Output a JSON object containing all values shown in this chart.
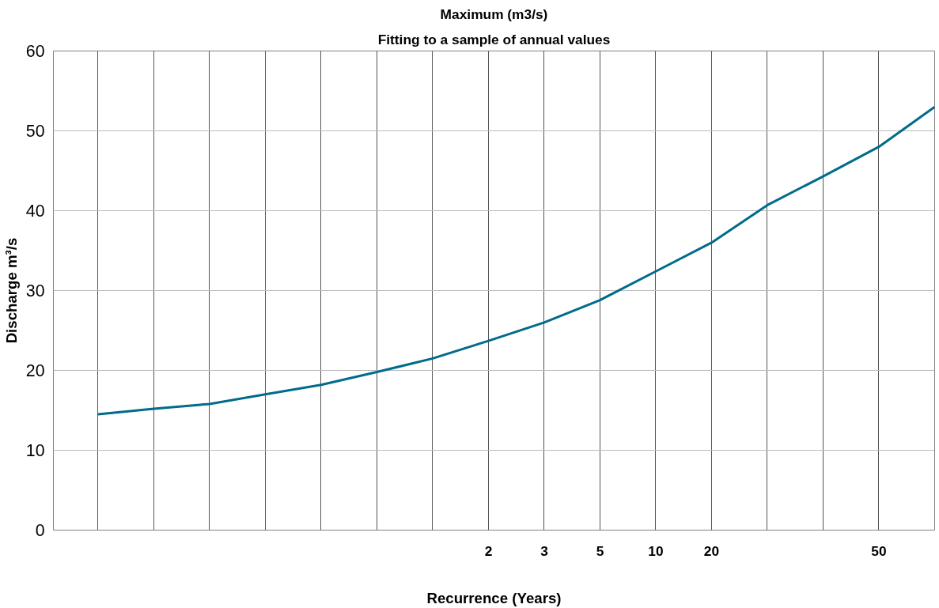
{
  "chart_data": {
    "type": "line",
    "title": "Maximum (m3/s)",
    "subtitle": "Fitting to a sample of annual values",
    "xlabel": "Recurrence (Years)",
    "ylabel": "Discharge m³/s",
    "ylim": [
      0,
      60
    ],
    "yticks": [
      0,
      10,
      20,
      30,
      40,
      50,
      60
    ],
    "categories": [
      null,
      null,
      null,
      null,
      null,
      null,
      null,
      "2",
      "3",
      "5",
      "10",
      "20",
      null,
      null,
      "50",
      null
    ],
    "grid": true,
    "marker": "none",
    "line_style": "solid",
    "series": [
      {
        "color": "#006b8a",
        "values": [
          14.5,
          15.2,
          15.8,
          17.0,
          18.2,
          19.8,
          21.5,
          23.7,
          26.0,
          28.8,
          32.4,
          36.0,
          40.7,
          44.3,
          48.0,
          53.0
        ]
      }
    ]
  }
}
